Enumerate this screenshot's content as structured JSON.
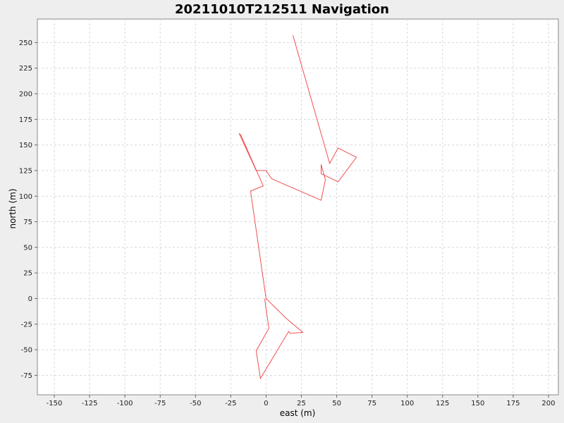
{
  "chart_data": {
    "type": "line",
    "title": "20211010T212511 Navigation",
    "xlabel": "east (m)",
    "ylabel": "north (m)",
    "xlim": [
      -162,
      207
    ],
    "ylim": [
      -94,
      273
    ],
    "xticks": [
      -150,
      -125,
      -100,
      -75,
      -50,
      -25,
      0,
      25,
      50,
      75,
      100,
      125,
      150,
      175,
      200
    ],
    "yticks": [
      -75,
      -50,
      -25,
      0,
      25,
      50,
      75,
      100,
      125,
      150,
      175,
      200,
      225,
      250
    ],
    "grid": true,
    "series": [
      {
        "color": "#f05050",
        "points": [
          [
            19,
            257
          ],
          [
            45,
            132
          ],
          [
            51,
            147
          ],
          [
            64,
            138
          ],
          [
            51,
            114
          ],
          [
            39,
            122
          ],
          [
            39,
            131
          ],
          [
            42,
            116
          ],
          [
            39,
            96
          ],
          [
            4,
            117
          ],
          [
            0,
            125
          ],
          [
            -7,
            125
          ],
          [
            -19,
            161
          ],
          [
            -18,
            160
          ],
          [
            -2,
            110
          ],
          [
            -11,
            105
          ],
          [
            0,
            0
          ],
          [
            14,
            -19
          ],
          [
            26,
            -33
          ],
          [
            17,
            -34
          ],
          [
            16,
            -32
          ],
          [
            -4,
            -78
          ],
          [
            -7,
            -51
          ],
          [
            2,
            -29
          ],
          [
            -1,
            0
          ]
        ]
      }
    ]
  }
}
